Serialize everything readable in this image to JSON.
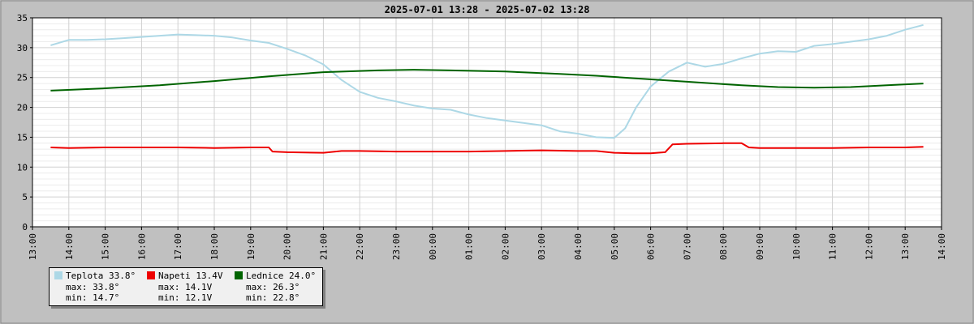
{
  "chart_data": {
    "type": "line",
    "title": "2025-07-01 13:28 - 2025-07-02 13:28",
    "ylim": [
      0,
      35
    ],
    "yticks": [
      "0",
      "5",
      "10",
      "15",
      "20",
      "25",
      "30",
      "35"
    ],
    "xticks": [
      "13:00",
      "14:00",
      "15:00",
      "16:00",
      "17:00",
      "18:00",
      "19:00",
      "20:00",
      "21:00",
      "22:00",
      "23:00",
      "00:00",
      "01:00",
      "02:00",
      "03:00",
      "04:00",
      "05:00",
      "06:00",
      "07:00",
      "08:00",
      "09:00",
      "10:00",
      "11:00",
      "12:00",
      "13:00",
      "14:00"
    ],
    "grid": true,
    "legend_position": "bottom-left",
    "series": [
      {
        "name": "Teplota",
        "color": "#add8e6",
        "x": [
          13.5,
          14,
          14.5,
          15,
          15.5,
          16,
          16.5,
          17,
          17.5,
          18,
          18.5,
          19,
          19.5,
          20,
          20.5,
          21,
          21.5,
          22,
          22.5,
          23,
          23.5,
          24,
          24.5,
          25,
          25.5,
          26,
          26.5,
          27,
          27.5,
          28,
          28.5,
          29,
          29.3,
          29.6,
          30,
          30.5,
          31,
          31.5,
          32,
          32.5,
          33,
          33.5,
          34,
          34.5,
          35,
          35.5,
          36,
          36.5,
          37,
          37.5
        ],
        "y": [
          30.4,
          31.3,
          31.3,
          31.4,
          31.6,
          31.8,
          32,
          32.2,
          32.1,
          32,
          31.7,
          31.2,
          30.8,
          29.8,
          28.7,
          27.2,
          24.6,
          22.6,
          21.6,
          21.0,
          20.3,
          19.8,
          19.6,
          18.8,
          18.2,
          17.8,
          17.4,
          17.0,
          16.0,
          15.6,
          15.0,
          14.9,
          16.5,
          20.0,
          23.5,
          26.0,
          27.5,
          26.8,
          27.3,
          28.2,
          29.0,
          29.4,
          29.3,
          30.3,
          30.6,
          31.0,
          31.4,
          32.0,
          33.0,
          33.8
        ]
      },
      {
        "name": "Napeti",
        "color": "#ee0000",
        "x": [
          13.5,
          14,
          15,
          16,
          17,
          18,
          19,
          19.5,
          19.6,
          20,
          21,
          21.5,
          22,
          23,
          24,
          25,
          26,
          27,
          28,
          28.5,
          29,
          29.5,
          30,
          30.4,
          30.6,
          31,
          32,
          32.5,
          32.7,
          33,
          34,
          35,
          36,
          37,
          37.5
        ],
        "y": [
          13.3,
          13.2,
          13.3,
          13.3,
          13.3,
          13.2,
          13.3,
          13.3,
          12.6,
          12.5,
          12.4,
          12.7,
          12.7,
          12.6,
          12.6,
          12.6,
          12.7,
          12.8,
          12.7,
          12.7,
          12.4,
          12.3,
          12.3,
          12.5,
          13.8,
          13.9,
          14.0,
          14.0,
          13.3,
          13.2,
          13.2,
          13.2,
          13.3,
          13.3,
          13.4
        ]
      },
      {
        "name": "Lednice",
        "color": "#006400",
        "x": [
          13.5,
          15,
          16.5,
          18,
          19.5,
          21,
          22.5,
          23.5,
          24.5,
          26,
          27.5,
          28.5,
          29.5,
          31,
          32.5,
          33.5,
          34.5,
          35.5,
          36.5,
          37.5
        ],
        "y": [
          22.8,
          23.2,
          23.7,
          24.4,
          25.2,
          25.9,
          26.2,
          26.3,
          26.2,
          26.0,
          25.6,
          25.3,
          24.9,
          24.3,
          23.7,
          23.4,
          23.3,
          23.4,
          23.7,
          24.0
        ]
      }
    ],
    "legend": [
      {
        "label": "Teplota 33.8°",
        "max": "max: 33.8°",
        "min": "min: 14.7°",
        "color": "#add8e6"
      },
      {
        "label": "Napeti 13.4V",
        "max": "max: 14.1V",
        "min": "min: 12.1V",
        "color": "#ee0000"
      },
      {
        "label": "Lednice 24.0°",
        "max": "max: 26.3°",
        "min": "min: 22.8°",
        "color": "#006400"
      }
    ]
  }
}
